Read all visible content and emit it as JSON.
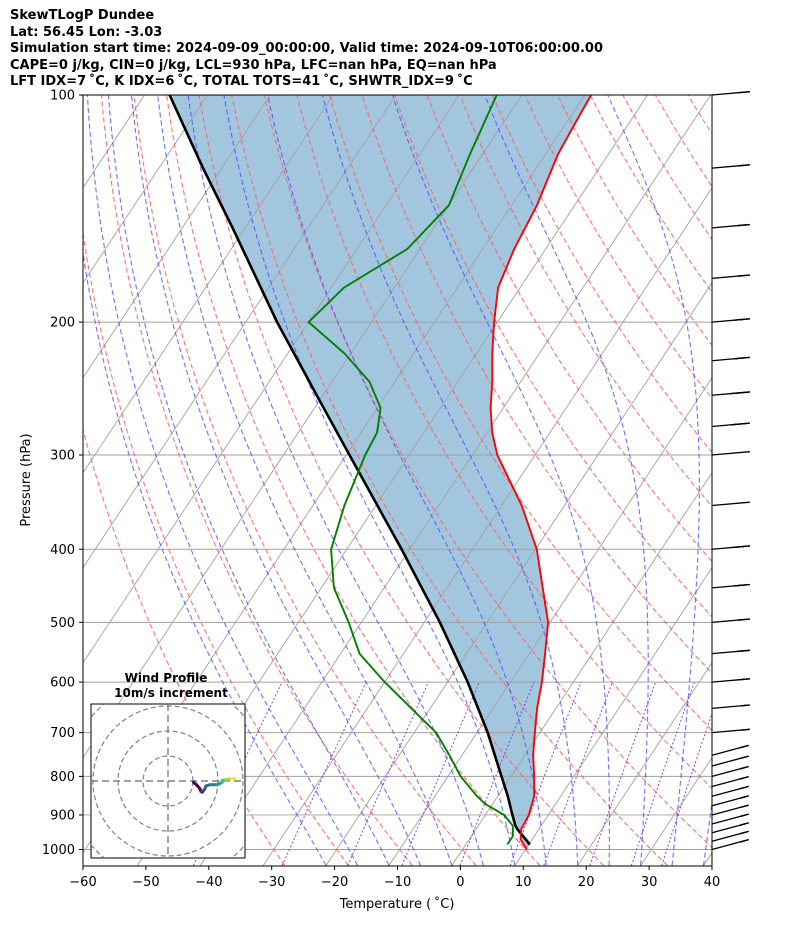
{
  "header": {
    "line1": "SkewTLogP Dundee",
    "line2": "Lat: 56.45   Lon: -3.03",
    "line3": "Simulation start time: 2024-09-09_00:00:00, Valid time: 2024-09-10T06:00:00.00",
    "line4": "CAPE=0 j/kg, CIN=0 j/kg, LCL=930 hPa, LFC=nan hPa, EQ=nan hPa",
    "line5": "LFT IDX=7 ˚C, K IDX=6 ˚C, TOTAL TOTS=41 ˚C, SHWTR_IDX=9 ˚C"
  },
  "chart_data": {
    "type": "line",
    "subtype": "skew-t log-p",
    "xlabel": "Temperature ($^∘$C)",
    "ylabel": "Pressure (hPa)",
    "xlim": [
      -60,
      40
    ],
    "ylim": [
      1050,
      100
    ],
    "yscale": "log",
    "xticks": [
      "−60",
      "−50",
      "−40",
      "−30",
      "−20",
      "−10",
      "0",
      "10",
      "20",
      "30",
      "40"
    ],
    "yticks": [
      "100",
      "200",
      "300",
      "400",
      "500",
      "600",
      "700",
      "800",
      "900",
      "1000"
    ],
    "grid": true,
    "colors": {
      "temperature": "#ff0000",
      "dewpoint": "#008000",
      "parcel": "#000000",
      "shade": "#a3c6df",
      "dry_adiabat": "#ff5a5a",
      "moist_adiabat": "#4b4bff",
      "mixing_ratio": "#8a2be2",
      "isotherm": "#a0a0a0"
    },
    "series": [
      {
        "role": "temperature",
        "pressure": [
          1000,
          970,
          940,
          900,
          850,
          800,
          750,
          700,
          650,
          600,
          550,
          500,
          450,
          400,
          350,
          300,
          280,
          260,
          240,
          220,
          200,
          180,
          160,
          140,
          120,
          110,
          100
        ],
        "values": [
          10.2,
          8.2,
          7.2,
          6.9,
          5.8,
          3.7,
          1.3,
          -0.8,
          -3.0,
          -5.0,
          -7.5,
          -10.3,
          -14.8,
          -19.8,
          -26.8,
          -36.0,
          -39.2,
          -42.0,
          -44.5,
          -47.5,
          -50.5,
          -53.5,
          -55.0,
          -56.0,
          -58.0,
          -58.5,
          -59.0
        ]
      },
      {
        "role": "dewpoint",
        "pressure": [
          985,
          960,
          930,
          900,
          870,
          850,
          800,
          750,
          700,
          650,
          600,
          550,
          500,
          450,
          400,
          350,
          300,
          280,
          260,
          240,
          220,
          200,
          180,
          160,
          140,
          120,
          100
        ],
        "values": [
          6.6,
          6.6,
          5.5,
          3.0,
          -1.2,
          -3.3,
          -8.0,
          -12.0,
          -16.5,
          -23.0,
          -30.0,
          -37.0,
          -42.0,
          -48.0,
          -52.5,
          -55.0,
          -57.0,
          -57.5,
          -59.5,
          -64.0,
          -71.0,
          -80.0,
          -78.0,
          -72.0,
          -70.0,
          -72.0,
          -74.0
        ]
      },
      {
        "role": "parcel",
        "pressure": [
          985,
          940,
          930,
          900,
          850,
          800,
          700,
          600,
          500,
          400,
          300,
          250,
          200,
          150,
          125,
          100
        ],
        "values": [
          10.2,
          6.6,
          5.9,
          4.3,
          1.6,
          -1.5,
          -8.3,
          -16.8,
          -27.5,
          -41.3,
          -59.5,
          -71.0,
          -85.0,
          -102.0,
          -113.0,
          -126.0
        ]
      }
    ],
    "wind_barbs": {
      "pressure": [
        1000,
        975,
        950,
        925,
        900,
        875,
        850,
        825,
        800,
        775,
        750,
        700,
        650,
        600,
        550,
        500,
        450,
        400,
        350,
        300,
        275,
        250,
        225,
        200,
        175,
        150,
        125,
        100
      ],
      "speed_kt": [
        15,
        15,
        15,
        15,
        15,
        15,
        15,
        15,
        15,
        15,
        15,
        15,
        15,
        20,
        25,
        25,
        35,
        40,
        50,
        50,
        45,
        45,
        35,
        30,
        25,
        25,
        25,
        20
      ],
      "direction_deg": [
        255,
        255,
        255,
        255,
        255,
        255,
        255,
        255,
        255,
        255,
        255,
        265,
        265,
        265,
        265,
        265,
        265,
        265,
        265,
        265,
        265,
        265,
        265,
        265,
        265,
        265,
        265,
        265
      ]
    },
    "inset": {
      "title": "Wind Profile",
      "subtitle": "10m/s increment",
      "hodograph_u": [
        3.0,
        4.2,
        5.5,
        6.0,
        6.5,
        7.5,
        8.0,
        9.5,
        11.0,
        12.5,
        13.5,
        14.5,
        14.5,
        16.0,
        17.0,
        18.0,
        19.0,
        19.5
      ],
      "hodograph_v": [
        -0.5,
        -1.5,
        -3.0,
        -4.2,
        -4.5,
        -3.2,
        -2.0,
        -1.5,
        -1.5,
        -1.5,
        -1.0,
        -0.5,
        0.2,
        0.5,
        0.8,
        0.9,
        1.0,
        1.0
      ]
    }
  }
}
